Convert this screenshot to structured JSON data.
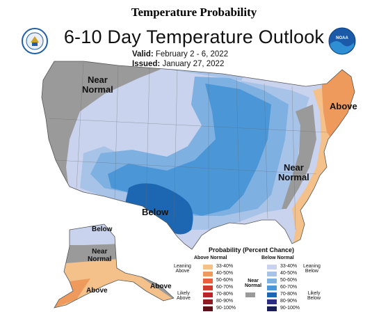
{
  "header": {
    "page_title": "Temperature Probability",
    "map_title": "6-10 Day Temperature Outlook",
    "valid_label": "Valid:",
    "valid_value": "February 2 - 6, 2022",
    "issued_label": "Issued:",
    "issued_value": "January 27, 2022"
  },
  "logos": {
    "left": {
      "name": "doc-seal-logo",
      "text": "DEPARTMENT OF COMMERCE"
    },
    "right": {
      "name": "noaa-logo",
      "text": "NOAA"
    }
  },
  "map_labels": {
    "near_normal_west": "Near\nNormal",
    "above_northeast": "Above",
    "near_normal_east": "Near\nNormal",
    "below_south": "Below",
    "alaska_below": "Below",
    "alaska_near_normal": "Near\nNormal",
    "alaska_above_west": "Above",
    "alaska_above_south": "Above"
  },
  "legend": {
    "title": "Probability (Percent Chance)",
    "above_header": "Above Normal",
    "below_header": "Below Normal",
    "near_normal_label": "Near\nNormal",
    "leaning_above": "Leaning\nAbove",
    "likely_above": "Likely\nAbove",
    "leaning_below": "Leaning\nBelow",
    "likely_below": "Likely\nBelow",
    "above_bins": [
      "33-40%",
      "40-50%",
      "50-60%",
      "60-70%",
      "70-80%",
      "80-90%",
      "90-100%"
    ],
    "below_bins": [
      "33-40%",
      "40-50%",
      "50-60%",
      "60-70%",
      "70-80%",
      "80-90%",
      "90-100%"
    ],
    "above_colors": [
      "#f4c18a",
      "#ee9a5c",
      "#e8603a",
      "#d23a2b",
      "#b82429",
      "#8e1a24",
      "#5e0f18"
    ],
    "below_colors": [
      "#c9d3ee",
      "#a8c3e8",
      "#7eb0e2",
      "#4a96d6",
      "#1d66b2",
      "#2a2d82",
      "#191e58"
    ],
    "near_normal_color": "#9a9a9a"
  }
}
